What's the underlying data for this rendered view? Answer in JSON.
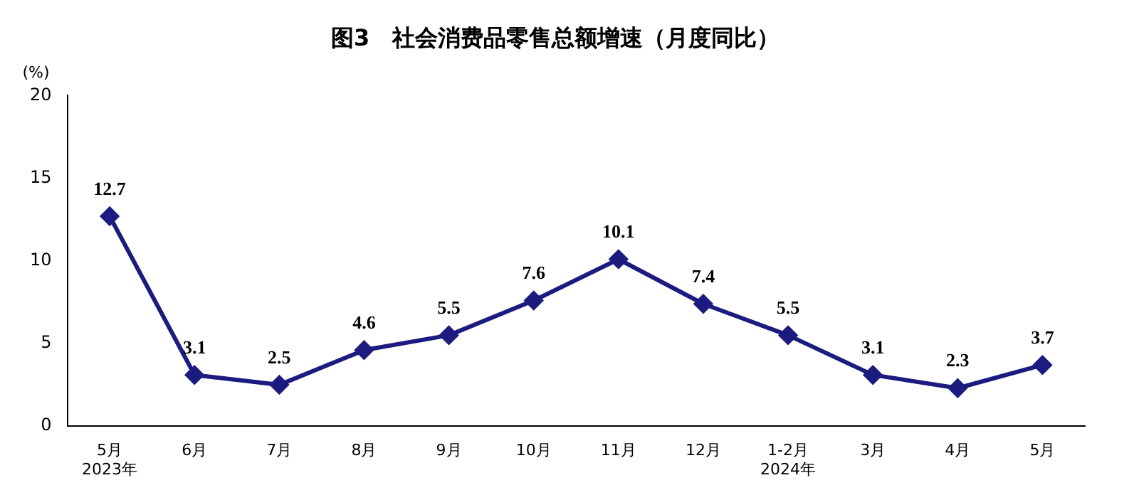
{
  "chart_data": {
    "type": "line",
    "title": "图3　社会消费品零售总额增速（月度同比）",
    "ylabel": "(%)",
    "categories": [
      "5月\n2023年",
      "6月",
      "7月",
      "8月",
      "9月",
      "10月",
      "11月",
      "12月",
      "1-2月\n2024年",
      "3月",
      "4月",
      "5月"
    ],
    "series": [
      {
        "color": "#1c1c80",
        "values": [
          12.7,
          3.1,
          2.5,
          4.6,
          5.5,
          7.6,
          10.1,
          7.4,
          5.5,
          3.1,
          2.3,
          3.7
        ]
      }
    ],
    "ylim": [
      0,
      20
    ],
    "yticks": [
      0,
      5,
      10,
      15,
      20
    ],
    "grid": false,
    "legend": false,
    "marker": "diamond",
    "line_style": "solid",
    "data_labels": true
  }
}
